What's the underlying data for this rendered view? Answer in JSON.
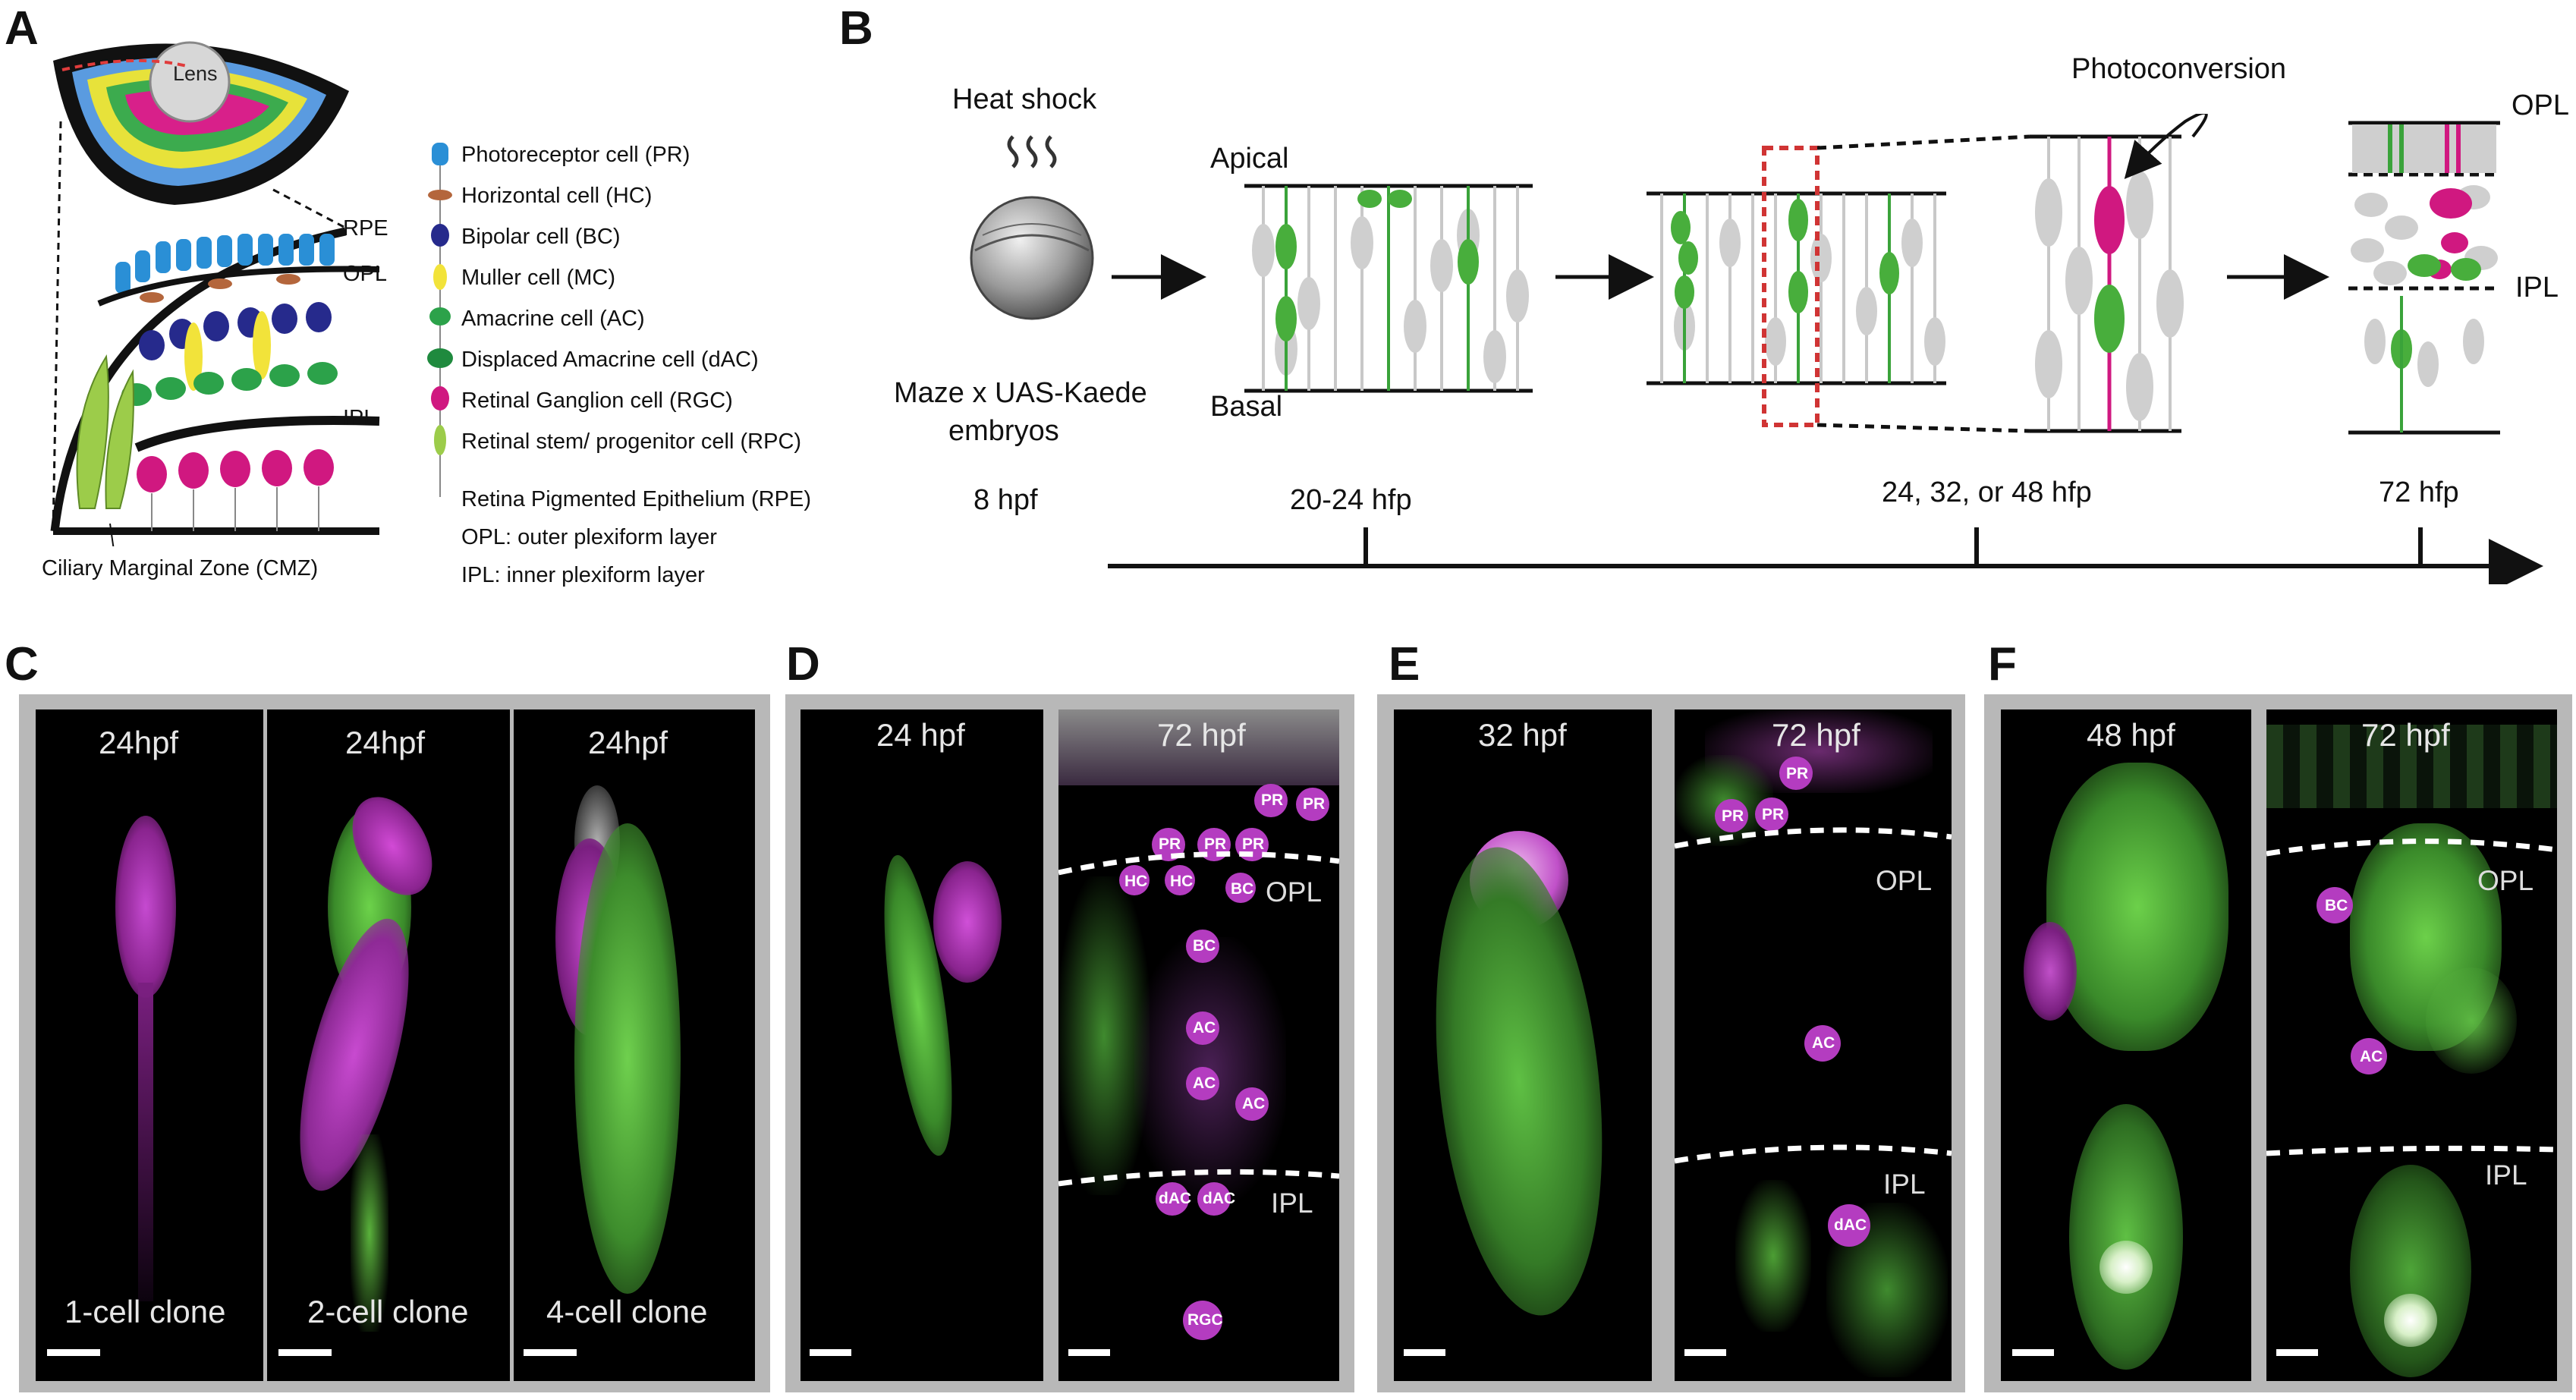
{
  "panels": {
    "A": "A",
    "B": "B",
    "C": "C",
    "D": "D",
    "E": "E",
    "F": "F"
  },
  "panelA": {
    "lens": "Lens",
    "rpe": "RPE",
    "opl": "OPL",
    "ipl": "IPL",
    "cmz": "Ciliary Marginal Zone (CMZ)",
    "legend": [
      {
        "label": "Photoreceptor cell (PR)",
        "color": "#2a8fd6"
      },
      {
        "label": "Horizontal cell (HC)",
        "color": "#b4663c"
      },
      {
        "label": "Bipolar cell (BC)",
        "color": "#262a8c"
      },
      {
        "label": "Muller cell (MC)",
        "color": "#f2e33a"
      },
      {
        "label": "Amacrine cell (AC)",
        "color": "#2ca24a"
      },
      {
        "label": "Displaced Amacrine cell (dAC)",
        "color": "#1f8a3e"
      },
      {
        "label": "Retinal Ganglion cell (RGC)",
        "color": "#d01880"
      },
      {
        "label": "Retinal stem/ progenitor cell (RPC)",
        "color": "#9ccc4a"
      }
    ],
    "notes": [
      "Retina Pigmented Epithelium (RPE)",
      "OPL: outer plexiform layer",
      "IPL: inner plexiform layer"
    ]
  },
  "panelB": {
    "heat_shock": "Heat shock",
    "embryo_line1": "Maze x UAS-Kaede",
    "embryo_line2": "embryos",
    "apical": "Apical",
    "basal": "Basal",
    "photoconversion": "Photoconversion",
    "opl": "OPL",
    "ipl": "IPL",
    "timeline": [
      "8 hpf",
      "20-24 hfp",
      "24, 32, or 48 hfp",
      "72 hfp"
    ]
  },
  "panelC": {
    "times": [
      "24hpf",
      "24hpf",
      "24hpf"
    ],
    "clones": [
      "1-cell clone",
      "2-cell clone",
      "4-cell clone"
    ]
  },
  "panelD": {
    "times": [
      "24 hpf",
      "72 hpf"
    ],
    "opl": "OPL",
    "ipl": "IPL",
    "cells": [
      "PR",
      "PR",
      "PR",
      "PR",
      "PR",
      "HC",
      "HC",
      "BC",
      "BC",
      "AC",
      "AC",
      "AC",
      "dAC",
      "dAC",
      "RGC"
    ]
  },
  "panelE": {
    "times": [
      "32 hpf",
      "72 hpf"
    ],
    "opl": "OPL",
    "ipl": "IPL",
    "cells": [
      "PR",
      "PR",
      "PR",
      "AC",
      "dAC"
    ]
  },
  "panelF": {
    "times": [
      "48 hpf",
      "72 hpf"
    ],
    "opl": "OPL",
    "ipl": "IPL",
    "cells": [
      "BC",
      "AC"
    ]
  }
}
